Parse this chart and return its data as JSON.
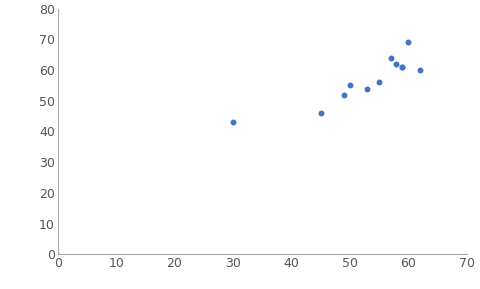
{
  "x": [
    30,
    45,
    49,
    50,
    53,
    55,
    57,
    58,
    59,
    59,
    60,
    62
  ],
  "y": [
    43,
    46,
    52,
    55,
    54,
    56,
    64,
    62,
    61,
    61,
    69,
    60
  ],
  "marker_color": "#4472C4",
  "marker_size": 18,
  "xlim": [
    0,
    70
  ],
  "ylim": [
    0,
    80
  ],
  "xticks": [
    0,
    10,
    20,
    30,
    40,
    50,
    60,
    70
  ],
  "yticks": [
    0,
    10,
    20,
    30,
    40,
    50,
    60,
    70,
    80
  ],
  "tick_fontsize": 9,
  "spine_color": "#AAAAAA"
}
